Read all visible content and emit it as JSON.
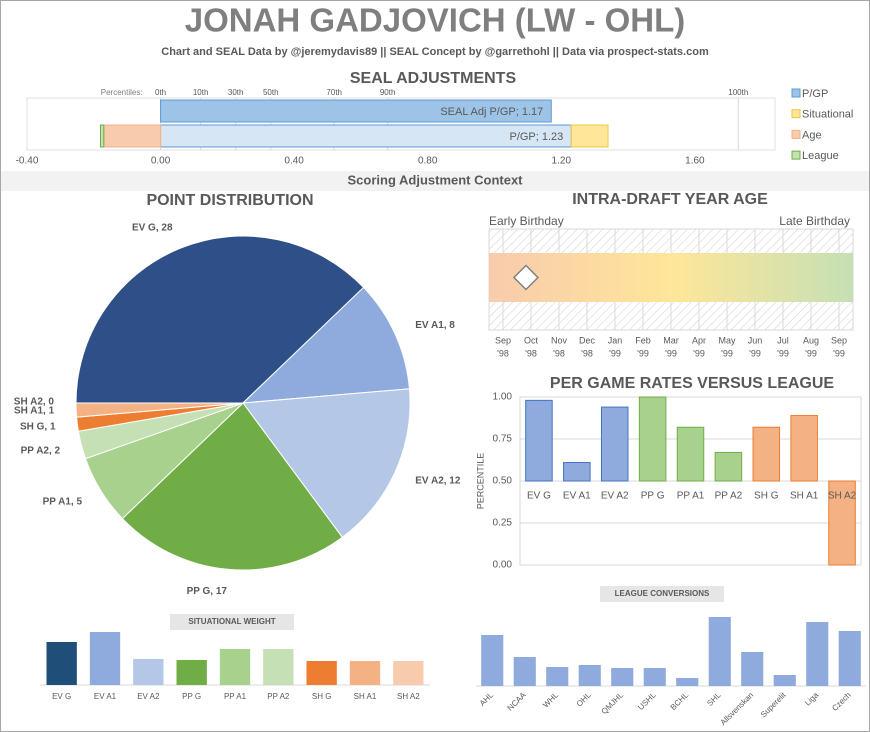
{
  "title": "JONAH GADJOVICH (LW - OHL)",
  "subtitle": "Chart and SEAL Data by @jeremydavis89 || SEAL Concept by @garrethohl || Data via prospect-stats.com",
  "section": "Scoring Adjustment Context",
  "chart_data": [
    {
      "type": "hbar",
      "title": "SEAL ADJUSTMENTS",
      "xlim": [
        -0.4,
        1.84
      ],
      "xticks": [
        {
          "value": -0.4,
          "label": "-0.40"
        },
        {
          "value": 0,
          "label": "0.00"
        },
        {
          "value": 0.4,
          "label": "0.40"
        },
        {
          "value": 0.8,
          "label": "0.80"
        },
        {
          "value": 1.2,
          "label": "1.20"
        },
        {
          "value": 1.6,
          "label": "1.60"
        }
      ],
      "percentiles": {
        "label": "Percentiles:",
        "ticks": [
          {
            "value": 0,
            "label": "0th"
          },
          {
            "value": 0.12,
            "label": "10th"
          },
          {
            "value": 0.225,
            "label": "30th"
          },
          {
            "value": 0.33,
            "label": "50th"
          },
          {
            "value": 0.52,
            "label": "70th"
          },
          {
            "value": 0.68,
            "label": "90th"
          },
          {
            "value": 1.73,
            "label": "100th"
          }
        ]
      },
      "series": [
        {
          "name": "P/GP",
          "color": "#9dc3e6",
          "colors": [
            "#9dc3e6",
            "#d6e6f5"
          ],
          "edge": "#5b9bd5",
          "values": [
            1.17,
            1.23
          ],
          "value_labels": [
            "SEAL Adj P/GP; 1.17",
            "P/GP; 1.23"
          ]
        },
        {
          "name": "Situational",
          "color": "#ffe699",
          "edge": "#f4c542",
          "values": [
            null,
            0.11
          ]
        },
        {
          "name": "Age",
          "color": "#f8cbad",
          "edge": "#f4b183",
          "values": [
            null,
            -0.17
          ]
        },
        {
          "name": "League",
          "color": "#c5e0b4",
          "edge": "#70ad47",
          "values": [
            null,
            -0.01
          ]
        }
      ]
    },
    {
      "type": "pie",
      "title": "POINT DISTRIBUTION",
      "categories": [
        "EV G",
        "EV A1",
        "EV A2",
        "PP G",
        "PP A1",
        "PP A2",
        "SH G",
        "SH A1",
        "SH A2"
      ],
      "values": [
        28,
        8,
        12,
        17,
        5,
        2,
        1,
        1,
        0
      ],
      "value_labels": [
        "EV G, 28",
        "EV A1, 8",
        "EV A2, 12",
        "PP G, 17",
        "PP A1, 5",
        "PP A2, 2",
        "SH G, 1",
        "SH A1, 1",
        "SH A2, 0"
      ],
      "colors": [
        "#2f4f88",
        "#8faadc",
        "#b4c7e7",
        "#70ad47",
        "#a9d18e",
        "#c5e0b4",
        "#ed7d31",
        "#f4b183",
        "#f8cbad"
      ]
    },
    {
      "type": "timeline",
      "title": "INTRA-DRAFT YEAR AGE",
      "left_label": "Early Birthday",
      "right_label": "Late Birthday",
      "xlim": [
        -0.5,
        12.5
      ],
      "marker": 0.82,
      "months": [
        [
          "Sep",
          "'98"
        ],
        [
          "Oct",
          "'98"
        ],
        [
          "Nov",
          "'98"
        ],
        [
          "Dec",
          "'98"
        ],
        [
          "Jan",
          "'99"
        ],
        [
          "Feb",
          "'99"
        ],
        [
          "Mar",
          "'99"
        ],
        [
          "Apr",
          "'99"
        ],
        [
          "May",
          "'99"
        ],
        [
          "Jun",
          "'99"
        ],
        [
          "Jul",
          "'99"
        ],
        [
          "Aug",
          "'99"
        ],
        [
          "Sep",
          "'99"
        ]
      ],
      "gradient": [
        "#f8cbad",
        "#ffe699",
        "#c5e0b4"
      ]
    },
    {
      "type": "bar",
      "title": "PER GAME RATES VERSUS LEAGUE",
      "ylabel": "PERCENTILE",
      "categories": [
        "EV G",
        "EV A1",
        "EV A2",
        "PP G",
        "PP A1",
        "PP A2",
        "SH G",
        "SH A1",
        "SH A2"
      ],
      "values": [
        0.98,
        0.61,
        0.94,
        1.0,
        0.82,
        0.67,
        0.82,
        0.89,
        0.0
      ],
      "colors": [
        "#8faadc",
        "#8faadc",
        "#8faadc",
        "#a9d18e",
        "#a9d18e",
        "#a9d18e",
        "#f4b183",
        "#f4b183",
        "#f4b183"
      ],
      "edge_colors": [
        "#4472c4",
        "#4472c4",
        "#4472c4",
        "#70ad47",
        "#70ad47",
        "#70ad47",
        "#ed7d31",
        "#ed7d31",
        "#ed7d31"
      ],
      "baseline": 0.5,
      "ylim": [
        0,
        1
      ],
      "yticks": [
        {
          "value": 1,
          "label": "1.00"
        },
        {
          "value": 0.75,
          "label": "0.75"
        },
        {
          "value": 0.5,
          "label": "0.50"
        },
        {
          "value": 0.25,
          "label": "0.25"
        },
        {
          "value": 0,
          "label": "0.00"
        }
      ],
      "grid": true
    },
    {
      "type": "bar",
      "title": "SITUATIONAL WEIGHT",
      "categories": [
        "EV G",
        "EV A1",
        "EV A2",
        "PP G",
        "PP A1",
        "PP A2",
        "SH G",
        "SH A1",
        "SH A2"
      ],
      "values": [
        0.86,
        1.06,
        0.52,
        0.5,
        0.72,
        0.72,
        0.48,
        0.48,
        0.48
      ],
      "colors": [
        "#1f4e79",
        "#8faadc",
        "#b4c7e7",
        "#70ad47",
        "#a9d18e",
        "#c5e0b4",
        "#ed7d31",
        "#f4b183",
        "#f8cbad"
      ],
      "ylim": [
        0,
        1.1
      ]
    },
    {
      "type": "bar",
      "title": "LEAGUE CONVERSIONS",
      "categories": [
        "AHL",
        "NCAA",
        "WHL",
        "OHL",
        "QMJHL",
        "USHL",
        "BCHL",
        "SHL",
        "Allsvenskan",
        "Superelit",
        "Liga",
        "Czech"
      ],
      "values": [
        0.51,
        0.29,
        0.19,
        0.21,
        0.18,
        0.18,
        0.08,
        0.69,
        0.34,
        0.11,
        0.64,
        0.55
      ],
      "color": "#8faadc",
      "ylim": [
        0,
        0.75
      ],
      "label_rotation": -45
    }
  ]
}
